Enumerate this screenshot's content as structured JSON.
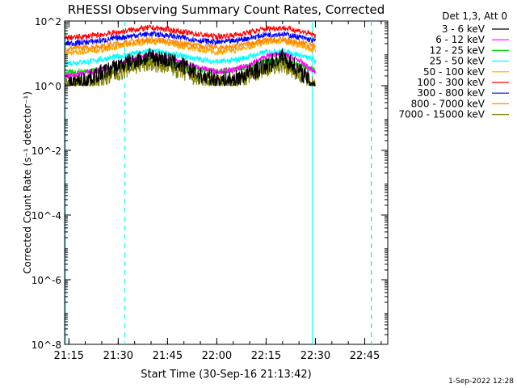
{
  "chart_data": {
    "type": "line",
    "title": "RHESSI Observing Summary Count Rates, Corrected",
    "xlabel": "Start Time (30-Sep-16 21:13:42)",
    "ylabel": "Corrected Count Rate (s⁻¹ detector⁻¹)",
    "yscale": "log",
    "ylim": [
      1e-08,
      100
    ],
    "xlim": [
      "21:13:42",
      "22:52:00"
    ],
    "x_ticks": [
      "21:15",
      "21:30",
      "21:45",
      "22:00",
      "22:15",
      "22:30",
      "22:45"
    ],
    "y_ticks": [
      "10^2",
      "10^0",
      "10^-2",
      "10^-4",
      "10^-6",
      "10^-8"
    ],
    "legend_title": "Det 1,3, Att 0",
    "legend_position": "right",
    "footer_date": "1-Sep-2022 12:28",
    "x": [
      "21:14",
      "21:20",
      "21:25",
      "21:30",
      "21:35",
      "21:40",
      "21:45",
      "21:50",
      "21:55",
      "22:00",
      "22:05",
      "22:10",
      "22:15",
      "22:20",
      "22:25",
      "22:30"
    ],
    "series": [
      {
        "name": "3 - 6 keV",
        "color": "#000000",
        "values": [
          1,
          1.5,
          2.5,
          4,
          6,
          8,
          6,
          4,
          2,
          1.5,
          1.5,
          2.5,
          4,
          8,
          3,
          1
        ]
      },
      {
        "name": "6 - 12 keV",
        "color": "#ff00ff",
        "values": [
          2,
          2.5,
          3,
          4.5,
          7,
          9,
          7,
          5,
          3.5,
          2.8,
          3,
          4.5,
          8,
          10,
          6,
          2.5
        ]
      },
      {
        "name": "12 - 25 keV",
        "color": "#00dd00",
        "values": [
          2.5,
          2.8,
          3.2,
          4,
          5,
          6,
          5,
          4,
          3.2,
          2.8,
          3,
          4,
          5.5,
          6,
          4.5,
          3
        ]
      },
      {
        "name": "25 - 50 keV",
        "color": "#00ffff",
        "values": [
          5,
          5.5,
          6.5,
          8,
          10,
          12,
          10,
          8,
          6.5,
          5.5,
          6,
          8,
          11,
          12,
          9,
          6
        ]
      },
      {
        "name": "50 - 100 keV",
        "color": "#ffa500",
        "values": [
          10,
          11,
          13,
          16,
          20,
          24,
          20,
          16,
          13,
          11,
          12,
          16,
          22,
          24,
          18,
          12
        ]
      },
      {
        "name": "100 - 300 keV",
        "color": "#ff0000",
        "values": [
          30,
          33,
          38,
          45,
          55,
          62,
          55,
          45,
          38,
          33,
          36,
          45,
          58,
          62,
          50,
          36
        ]
      },
      {
        "name": "300 - 800 keV",
        "color": "#0000ff",
        "values": [
          20,
          22,
          25,
          30,
          36,
          40,
          36,
          30,
          25,
          22,
          24,
          30,
          38,
          40,
          32,
          24
        ]
      },
      {
        "name": "800 - 7000 keV",
        "color": "#ff8800",
        "values": [
          14,
          15,
          17,
          20,
          24,
          27,
          24,
          20,
          17,
          15,
          16,
          20,
          26,
          27,
          22,
          16
        ]
      },
      {
        "name": "7000 - 15000 keV",
        "color": "#808000",
        "values": [
          1,
          1.2,
          1.5,
          2.5,
          4,
          5,
          4,
          2.5,
          1.5,
          1.2,
          1.2,
          2,
          3.5,
          4.5,
          2.5,
          1
        ]
      }
    ],
    "vertical_lines": [
      {
        "x": "21:14",
        "color": "#00ffff",
        "style": "solid"
      },
      {
        "x": "21:32",
        "color": "#00ffff",
        "style": "dashed"
      },
      {
        "x": "22:29",
        "color": "#00ffff",
        "style": "solid"
      },
      {
        "x": "22:47",
        "color": "#ff00ff",
        "style": "dashed"
      },
      {
        "x": "22:47",
        "color": "#00ffff",
        "style": "dashed"
      }
    ]
  }
}
